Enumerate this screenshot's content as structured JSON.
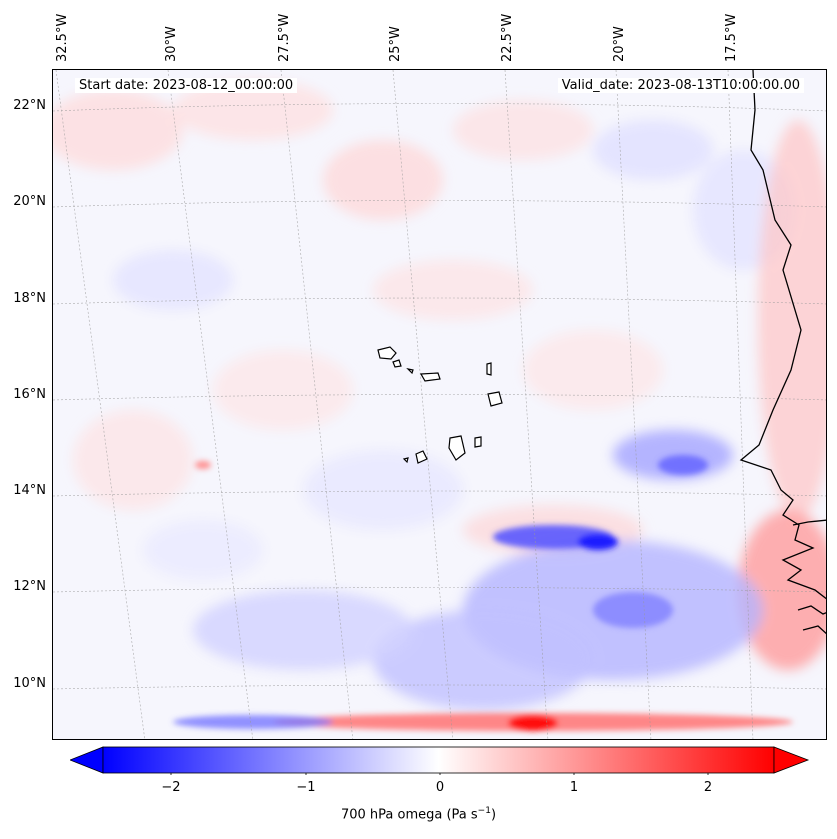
{
  "map": {
    "start_label": "Start date: 2023-08-12_00:00:00",
    "valid_label": "Valid_date: 2023-08-13T10:00:00.00",
    "lon_ticks": [
      "32.5°W",
      "30°W",
      "27.5°W",
      "25°W",
      "22.5°W",
      "20°W",
      "17.5°W"
    ],
    "lat_ticks": [
      "22°N",
      "20°N",
      "18°N",
      "16°N",
      "14°N",
      "12°N",
      "10°N"
    ],
    "gridlines": true,
    "projection_note": "Lambert conformal",
    "land_features": [
      "Cape Verde islands",
      "West Africa coastline"
    ]
  },
  "colorbar": {
    "ticks": [
      "−2",
      "−1",
      "0",
      "1",
      "2"
    ],
    "label_main": "700 hPa omega (Pa s",
    "label_sup": "−1",
    "label_end": ")",
    "min": -2.6,
    "max": 2.6,
    "extend": "both",
    "colormap": "bwr",
    "colors": {
      "low": "#0000ff",
      "mid": "#ffffff",
      "high": "#ff0000"
    }
  }
}
